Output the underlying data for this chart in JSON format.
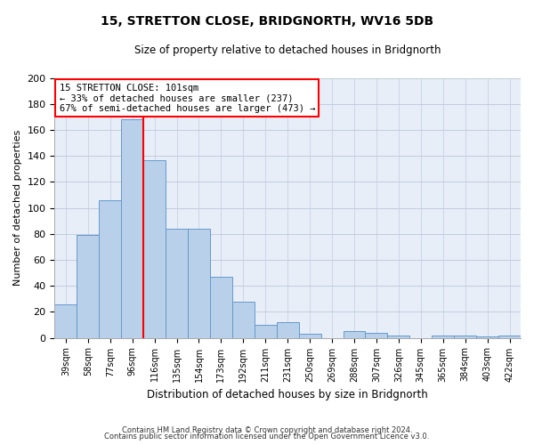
{
  "title": "15, STRETTON CLOSE, BRIDGNORTH, WV16 5DB",
  "subtitle": "Size of property relative to detached houses in Bridgnorth",
  "xlabel": "Distribution of detached houses by size in Bridgnorth",
  "ylabel": "Number of detached properties",
  "bar_labels": [
    "39sqm",
    "58sqm",
    "77sqm",
    "96sqm",
    "116sqm",
    "135sqm",
    "154sqm",
    "173sqm",
    "192sqm",
    "211sqm",
    "231sqm",
    "250sqm",
    "269sqm",
    "288sqm",
    "307sqm",
    "326sqm",
    "345sqm",
    "365sqm",
    "384sqm",
    "403sqm",
    "422sqm"
  ],
  "bar_values": [
    26,
    79,
    106,
    168,
    137,
    84,
    84,
    47,
    28,
    10,
    12,
    3,
    0,
    5,
    4,
    2,
    0,
    2,
    2,
    1,
    2
  ],
  "bar_color": "#b8d0ea",
  "bar_edge_color": "#6699cc",
  "red_line_index": 4,
  "ylim": [
    0,
    200
  ],
  "yticks": [
    0,
    20,
    40,
    60,
    80,
    100,
    120,
    140,
    160,
    180,
    200
  ],
  "annotation_title": "15 STRETTON CLOSE: 101sqm",
  "annotation_line1": "← 33% of detached houses are smaller (237)",
  "annotation_line2": "67% of semi-detached houses are larger (473) →",
  "footer1": "Contains HM Land Registry data © Crown copyright and database right 2024.",
  "footer2": "Contains public sector information licensed under the Open Government Licence v3.0.",
  "bg_color": "#ffffff",
  "plot_bg_color": "#e8eef8",
  "grid_color": "#c0cce0"
}
